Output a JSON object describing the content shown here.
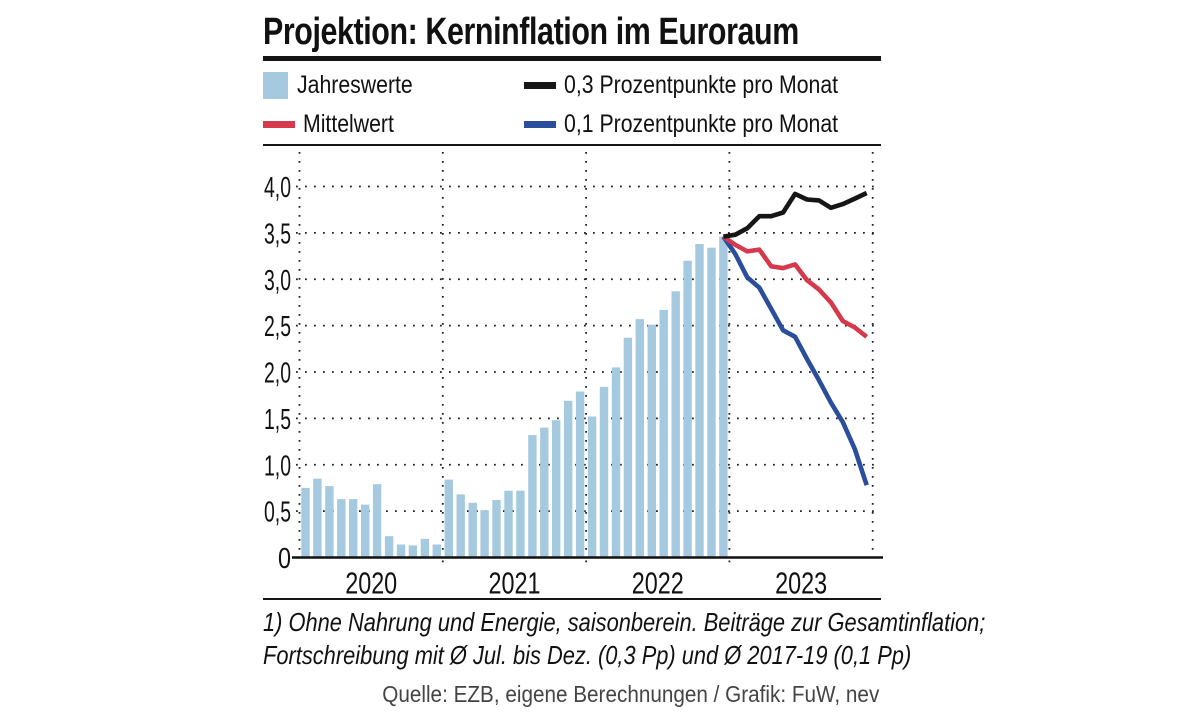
{
  "title": "Projektion: Kerninflation im Euroraum",
  "legend": {
    "items": [
      {
        "label": "Jahreswerte",
        "swatch": "square",
        "color": "#a5cadf"
      },
      {
        "label": "0,3 Prozentpunkte pro Monat",
        "swatch": "line",
        "color": "#161616"
      },
      {
        "label": "Mittelwert",
        "swatch": "line",
        "color": "#d43a4b"
      },
      {
        "label": "0,1 Prozentpunkte pro Monat",
        "swatch": "line",
        "color": "#2a4d9c"
      }
    ]
  },
  "footnote_line1": "1) Ohne Nahrung und Energie, saisonberein. Beiträge zur Gesamtinflation;",
  "footnote_line2": "Fortschreibung mit Ø Jul. bis Dez. (0,3 Pp) und Ø 2017-19 (0,1 Pp)",
  "source": "Quelle: EZB, eigene Berechnungen / Grafik: FuW, nev",
  "chart_data": {
    "type": "bar",
    "title": "Projektion: Kerninflation im Euroraum",
    "unit": "Prozentpunkte",
    "grid": "dotted",
    "x_axis": {
      "years": [
        "2020",
        "2021",
        "2022",
        "2023"
      ]
    },
    "y_axis": {
      "ticks": [
        "0",
        "0,5",
        "1,0",
        "1,5",
        "2,0",
        "2,5",
        "3,0",
        "3,5",
        "4,0"
      ],
      "min": 0,
      "max": 4.35
    },
    "bars": {
      "name": "Jahreswerte",
      "color": "#a5cadf",
      "period": "monatlich Jan 2020 bis Dez 2022",
      "values": [
        0.75,
        0.85,
        0.77,
        0.63,
        0.63,
        0.57,
        0.79,
        0.23,
        0.14,
        0.13,
        0.2,
        0.14,
        0.84,
        0.68,
        0.59,
        0.51,
        0.62,
        0.72,
        0.72,
        1.32,
        1.4,
        1.48,
        1.69,
        1.79,
        1.52,
        1.84,
        2.05,
        2.37,
        2.57,
        2.51,
        2.67,
        2.87,
        3.2,
        3.38,
        3.34,
        3.46
      ]
    },
    "projection_start": {
      "x": "Dez 2022",
      "value": 3.46
    },
    "lines": [
      {
        "name": "0,3 Prozentpunkte pro Monat",
        "color": "#161616",
        "period": "monatlich Jan bis Dez 2023",
        "values": [
          3.48,
          3.55,
          3.68,
          3.68,
          3.72,
          3.92,
          3.86,
          3.85,
          3.77,
          3.81,
          3.87,
          3.93
        ]
      },
      {
        "name": "Mittelwert",
        "color": "#d43a4b",
        "period": "monatlich Jan bis Dez 2023",
        "values": [
          3.37,
          3.3,
          3.32,
          3.14,
          3.12,
          3.16,
          2.99,
          2.89,
          2.75,
          2.55,
          2.48,
          2.38
        ]
      },
      {
        "name": "0,1 Prozentpunkte pro Monat",
        "color": "#2a4d9c",
        "period": "monatlich Jan bis Dez 2023",
        "values": [
          3.27,
          3.02,
          2.91,
          2.68,
          2.45,
          2.38,
          2.14,
          1.91,
          1.67,
          1.46,
          1.17,
          0.78
        ]
      }
    ]
  }
}
